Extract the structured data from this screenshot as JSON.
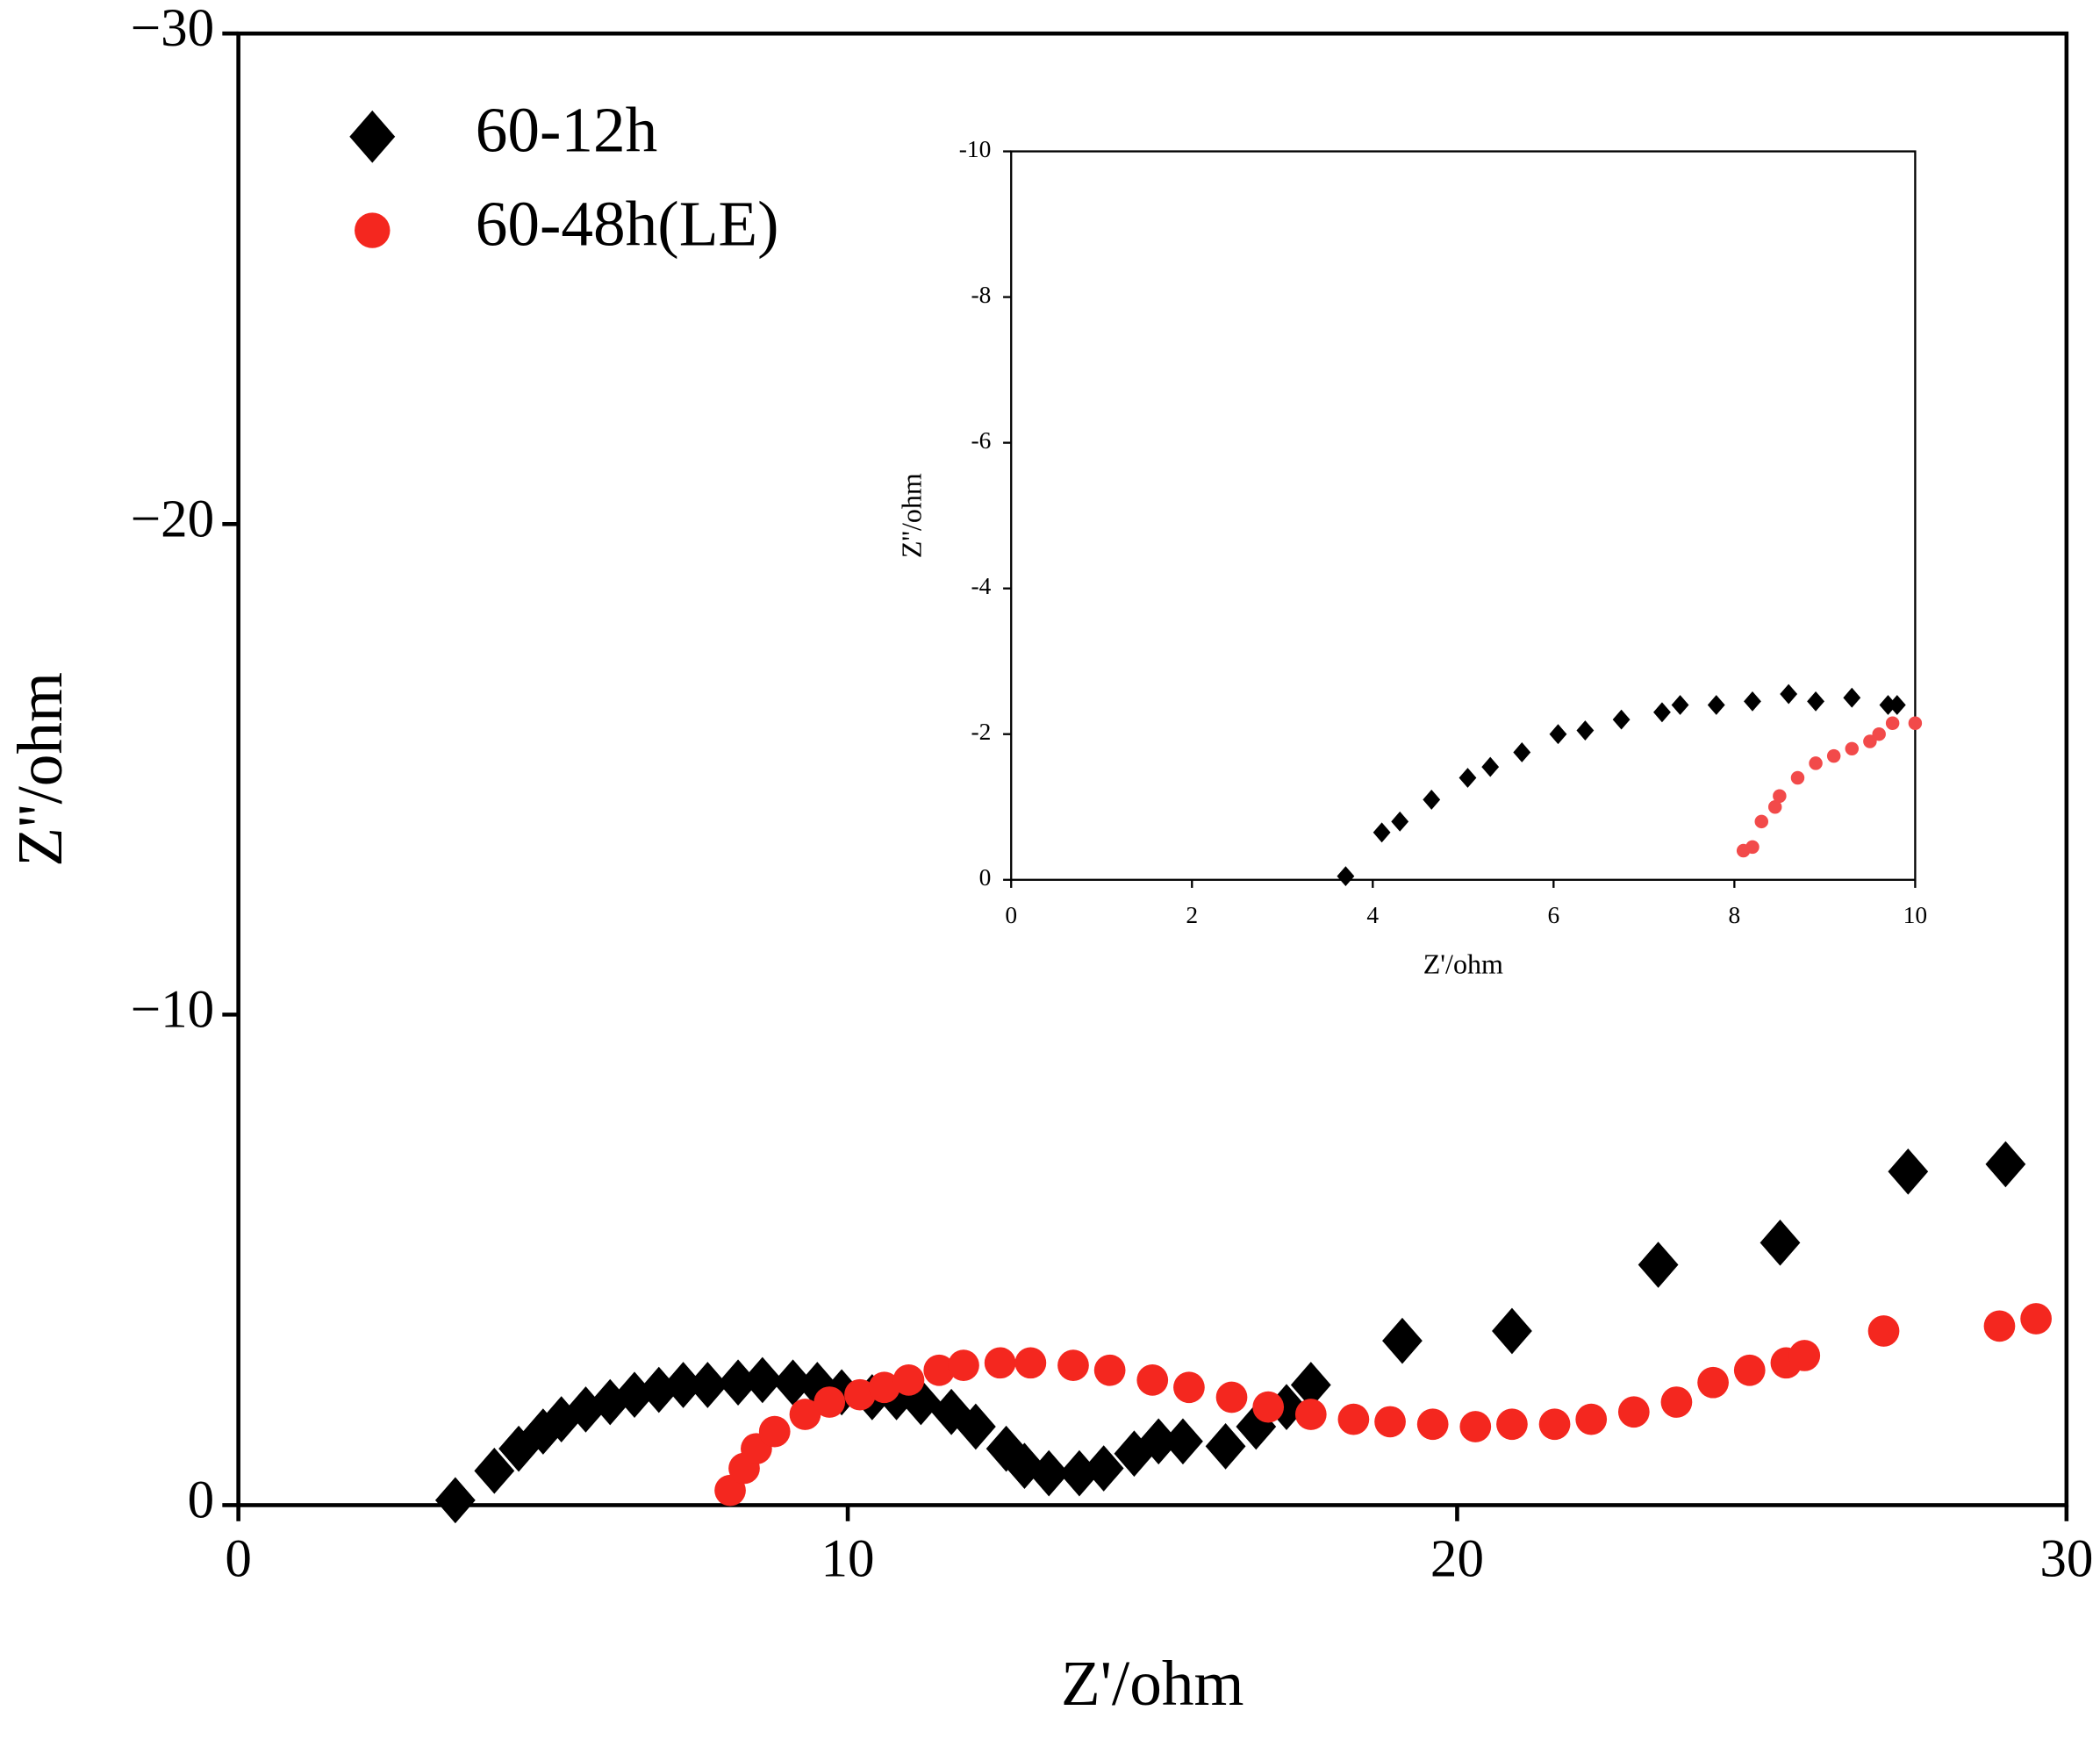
{
  "chart_data": [
    {
      "type": "scatter",
      "xlabel": "Z'/ohm",
      "ylabel": "Z''/ohm",
      "xlim": [
        0,
        30
      ],
      "ylim": [
        0,
        -30
      ],
      "xticks": [
        0,
        10,
        20,
        30
      ],
      "yticks": [
        0,
        {
          "value": -10,
          "label": "−10"
        },
        {
          "value": -20,
          "label": "−20"
        },
        {
          "value": -30,
          "label": "−30"
        }
      ],
      "legend": "upper-left",
      "series": [
        {
          "name": "60-12h",
          "color": "#000000",
          "marker": "diamond",
          "x": [
            3.56,
            4.2,
            4.6,
            5.0,
            5.3,
            5.7,
            6.1,
            6.5,
            6.9,
            7.3,
            7.7,
            8.2,
            8.6,
            9.1,
            9.5,
            9.9,
            10.4,
            10.8,
            11.2,
            11.7,
            12.1,
            12.6,
            12.9,
            13.3,
            13.8,
            14.2,
            14.7,
            15.1,
            15.5,
            16.2,
            16.7,
            17.2,
            17.6,
            19.1,
            20.9,
            23.3,
            25.3,
            27.4,
            29.0
          ],
          "values": [
            -0.1,
            -0.7,
            -1.15,
            -1.5,
            -1.75,
            -1.95,
            -2.1,
            -2.25,
            -2.35,
            -2.45,
            -2.45,
            -2.5,
            -2.55,
            -2.5,
            -2.45,
            -2.3,
            -2.2,
            -2.2,
            -2.1,
            -1.9,
            -1.6,
            -1.15,
            -0.8,
            -0.65,
            -0.65,
            -0.75,
            -1.05,
            -1.3,
            -1.3,
            -1.2,
            -1.6,
            -2.0,
            -2.45,
            -3.35,
            -3.55,
            -4.9,
            -5.35,
            -6.8,
            -6.95
          ]
        },
        {
          "name": "60-48h(LE)",
          "color": "#f4271f",
          "marker": "circle",
          "x": [
            8.07,
            8.3,
            8.5,
            8.8,
            9.3,
            9.7,
            10.2,
            10.6,
            11.0,
            11.5,
            11.9,
            12.5,
            13.0,
            13.7,
            14.3,
            15.0,
            15.6,
            16.3,
            16.9,
            17.6,
            18.3,
            18.9,
            19.6,
            20.3,
            20.9,
            21.6,
            22.2,
            22.9,
            23.6,
            24.2,
            24.8,
            25.4,
            25.7,
            27.0,
            28.9,
            29.5
          ],
          "values": [
            -0.3,
            -0.75,
            -1.15,
            -1.5,
            -1.85,
            -2.1,
            -2.25,
            -2.4,
            -2.55,
            -2.75,
            -2.85,
            -2.9,
            -2.9,
            -2.85,
            -2.75,
            -2.55,
            -2.4,
            -2.2,
            -2.0,
            -1.85,
            -1.75,
            -1.7,
            -1.65,
            -1.6,
            -1.65,
            -1.65,
            -1.75,
            -1.9,
            -2.1,
            -2.5,
            -2.75,
            -2.9,
            -3.05,
            -3.55,
            -3.65,
            -3.8
          ]
        }
      ]
    },
    {
      "type": "scatter",
      "xlabel": "Z'/ohm",
      "ylabel": "Z''/ohm",
      "xlim": [
        0,
        10
      ],
      "ylim": [
        0,
        -10
      ],
      "xticks": [
        0,
        2,
        4,
        6,
        8,
        10
      ],
      "yticks": [
        0,
        -2,
        -4,
        -6,
        -8,
        -10
      ],
      "series": [
        {
          "color": "#000000",
          "marker": "diamond",
          "x": [
            3.7,
            4.1,
            4.3,
            4.65,
            5.05,
            5.3,
            5.65,
            6.05,
            6.35,
            6.75,
            7.2,
            7.4,
            7.8,
            8.2,
            8.6,
            8.9,
            9.3,
            9.7,
            9.8
          ],
          "values": [
            -0.05,
            -0.65,
            -0.8,
            -1.1,
            -1.4,
            -1.55,
            -1.75,
            -2.0,
            -2.05,
            -2.2,
            -2.3,
            -2.4,
            -2.4,
            -2.45,
            -2.55,
            -2.45,
            -2.5,
            -2.4,
            -2.4
          ]
        },
        {
          "color": "#f24a4a",
          "marker": "circle",
          "x": [
            8.1,
            8.2,
            8.3,
            8.45,
            8.5,
            8.7,
            8.9,
            9.1,
            9.3,
            9.5,
            9.6,
            9.75,
            10
          ],
          "values": [
            -0.4,
            -0.45,
            -0.8,
            -1.0,
            -1.15,
            -1.4,
            -1.6,
            -1.7,
            -1.8,
            -1.9,
            -2.0,
            -2.15,
            -2.15
          ]
        }
      ]
    }
  ]
}
